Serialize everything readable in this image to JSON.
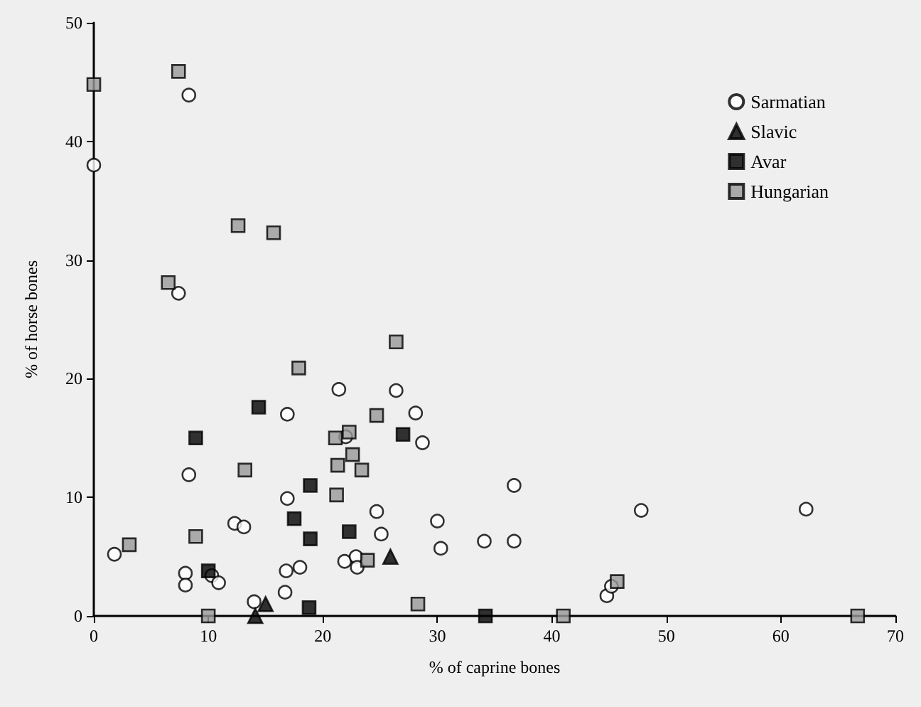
{
  "chart_data": {
    "type": "scatter",
    "xlabel": "% of caprine bones",
    "ylabel": "% of horse bones",
    "xlim": [
      0,
      70
    ],
    "xticks": [
      0,
      10,
      20,
      30,
      40,
      50,
      60,
      70
    ],
    "ylim": [
      0,
      50
    ],
    "yticks": [
      0,
      10,
      20,
      30,
      40,
      50
    ],
    "grid": false,
    "legend": "top right",
    "series": [
      {
        "name": "Sarmatian",
        "color": "#ffffff",
        "marker": "circle",
        "x": [
          8.3,
          0,
          7.4,
          21.4,
          16.9,
          8.3,
          16.9,
          12.3,
          13.1,
          1.8,
          8.0,
          8.0,
          10.3,
          10.9,
          16.8,
          18.0,
          16.7,
          14.0,
          21.9,
          26.4,
          28.1,
          28.7,
          22.0,
          36.7,
          24.7,
          30.0,
          25.1,
          30.3,
          34.1,
          36.7,
          22.9,
          23.0,
          47.8,
          62.2,
          44.8,
          45.2
        ],
        "values": [
          43.9,
          38.0,
          27.2,
          19.1,
          17.0,
          11.9,
          9.9,
          7.8,
          7.5,
          5.2,
          3.6,
          2.6,
          3.4,
          2.8,
          3.8,
          4.1,
          2.0,
          1.2,
          4.6,
          19.0,
          17.1,
          14.6,
          15.1,
          11.0,
          8.8,
          8.0,
          6.9,
          5.7,
          6.3,
          6.3,
          5.0,
          4.1,
          8.9,
          9.0,
          1.7,
          2.5
        ]
      },
      {
        "name": "Slavic",
        "color": "#000000",
        "marker": "triangle",
        "x": [
          15.0,
          14.1,
          25.9
        ],
        "values": [
          1.0,
          0,
          5.0
        ]
      },
      {
        "name": "Avar",
        "color": "#000000",
        "marker": "square",
        "x": [
          14.4,
          8.9,
          18.9,
          17.5,
          18.9,
          10.0,
          18.8,
          27.0,
          22.3,
          34.2
        ],
        "values": [
          17.6,
          15.0,
          11.0,
          8.2,
          6.5,
          3.8,
          0.7,
          15.3,
          7.1,
          0
        ]
      },
      {
        "name": "Hungarian",
        "color": "#999999",
        "marker": "square",
        "x": [
          0,
          7.4,
          12.6,
          15.7,
          6.5,
          17.9,
          21.1,
          13.2,
          21.2,
          8.9,
          3.1,
          10.0,
          26.4,
          24.7,
          22.3,
          22.6,
          21.3,
          23.4,
          23.9,
          28.3,
          41.0,
          45.7,
          66.7
        ],
        "values": [
          44.8,
          45.9,
          32.9,
          32.3,
          28.1,
          20.9,
          15.0,
          12.3,
          10.2,
          6.7,
          6.0,
          0,
          23.1,
          16.9,
          15.5,
          13.6,
          12.7,
          12.3,
          4.7,
          1.0,
          0,
          2.9,
          0
        ]
      }
    ]
  }
}
